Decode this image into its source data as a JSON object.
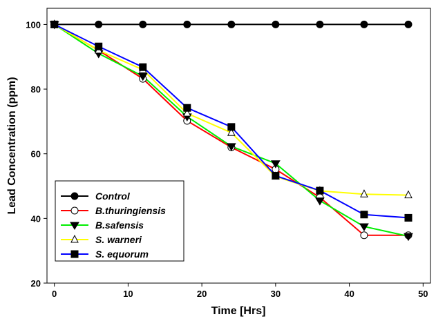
{
  "chart_data": {
    "type": "line",
    "title": "",
    "xlabel": "Time [Hrs]",
    "ylabel": "Lead Concentration (ppm)",
    "xlim": [
      -1,
      51
    ],
    "ylim": [
      20,
      105
    ],
    "xticks": [
      0,
      10,
      20,
      30,
      40,
      50
    ],
    "yticks": [
      20,
      40,
      60,
      80,
      100
    ],
    "grid": false,
    "legend_position": "lower-left",
    "x": [
      0,
      6,
      12,
      18,
      24,
      30,
      36,
      42,
      48
    ],
    "series": [
      {
        "name": "Control",
        "color": "#000000",
        "marker": "circle-filled",
        "values": [
          100,
          100,
          100,
          100,
          100,
          100,
          100,
          100,
          100
        ]
      },
      {
        "name": "B.thuringiensis",
        "color": "#ff0000",
        "marker": "circle-open",
        "values": [
          100,
          92,
          83.2,
          70.2,
          62,
          55.2,
          46.5,
          34.8,
          34.8
        ]
      },
      {
        "name": "B.safensis",
        "color": "#00ee00",
        "marker": "triangle-down-filled",
        "values": [
          100,
          91,
          84,
          71.5,
          62.3,
          57,
          45.5,
          37.5,
          34.5
        ]
      },
      {
        "name": "S. warneri",
        "color": "#ffff00",
        "marker": "triangle-up-open",
        "values": [
          100,
          92,
          86,
          72.5,
          66.5,
          53,
          48.5,
          47.5,
          47.2
        ]
      },
      {
        "name": "S. equorum",
        "color": "#0000ff",
        "marker": "square-filled",
        "values": [
          100,
          93.2,
          86.8,
          74.2,
          68.3,
          53.2,
          48.6,
          41.2,
          40.2
        ]
      }
    ]
  }
}
